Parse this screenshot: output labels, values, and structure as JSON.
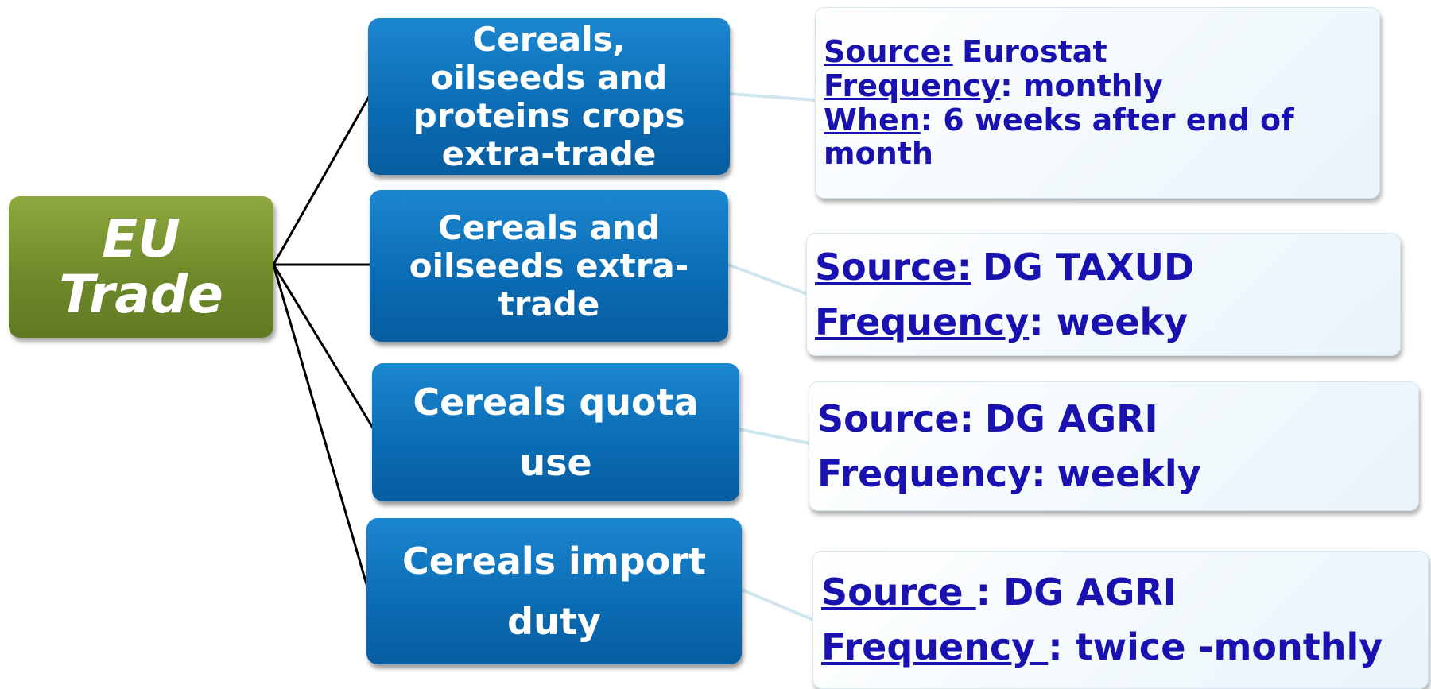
{
  "root": {
    "label": "EU Trade"
  },
  "branches": [
    {
      "label": "Cereals, oilseeds and proteins crops extra-trade",
      "details": [
        {
          "key": "Source:",
          "value": "Eurostat",
          "underline": true
        },
        {
          "key": "Frequency",
          "value": ": monthly",
          "underline": true
        },
        {
          "key": "When",
          "value": ": 6 weeks after end of month",
          "underline": true
        }
      ]
    },
    {
      "label": "Cereals and oilseeds extra-trade",
      "details": [
        {
          "key": "Source:",
          "value": "DG TAXUD",
          "underline": true
        },
        {
          "key": "Frequency",
          "value": ": weeky",
          "underline": true
        }
      ]
    },
    {
      "label": "Cereals quota use",
      "details": [
        {
          "key": "Source:",
          "value": "DG AGRI",
          "underline": false
        },
        {
          "key": "Frequency:",
          "value": "weekly",
          "underline": false
        }
      ]
    },
    {
      "label": "Cereals import duty",
      "details": [
        {
          "key": "Source ",
          "value": ": DG AGRI",
          "underline": true
        },
        {
          "key": "Frequency ",
          "value": ": twice -monthly",
          "underline": true
        }
      ]
    }
  ]
}
